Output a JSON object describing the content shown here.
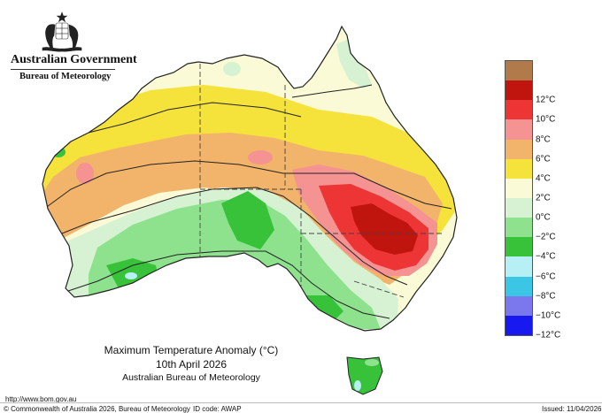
{
  "header": {
    "gov_title": "Australian Government",
    "bureau_title": "Bureau of Meteorology"
  },
  "map": {
    "region": "Australia",
    "colors": {
      "background": "#ffffff",
      "sea_outline": "#222222",
      "state_border": "#444444"
    }
  },
  "legend": {
    "items": [
      {
        "label": "",
        "color": "#b07a4a"
      },
      {
        "label": "12°C",
        "color": "#c0140f"
      },
      {
        "label": "10°C",
        "color": "#ee3535"
      },
      {
        "label": "8°C",
        "color": "#f59292"
      },
      {
        "label": "6°C",
        "color": "#f2b46a"
      },
      {
        "label": "4°C",
        "color": "#f5e23a"
      },
      {
        "label": "2°C",
        "color": "#fafad6"
      },
      {
        "label": "0°C",
        "color": "#d6f2d2"
      },
      {
        "label": "−2°C",
        "color": "#8ee28e"
      },
      {
        "label": "−4°C",
        "color": "#38c23a"
      },
      {
        "label": "−6°C",
        "color": "#b6f0f4"
      },
      {
        "label": "−8°C",
        "color": "#3cc6e6"
      },
      {
        "label": "−10°C",
        "color": "#7b78ee"
      },
      {
        "label": "−12°C",
        "color": "#1818f0"
      }
    ]
  },
  "caption": {
    "line1": "Maximum Temperature Anomaly (°C)",
    "line2": "10th April 2026",
    "line3": "Australian Bureau of Meteorology"
  },
  "footer": {
    "url": "http://www.bom.gov.au",
    "copyright": "© Commonwealth of Australia 2026, Bureau of Meteorology",
    "id_code": "ID code: AWAP",
    "issued": "Issued: 11/04/2026"
  }
}
